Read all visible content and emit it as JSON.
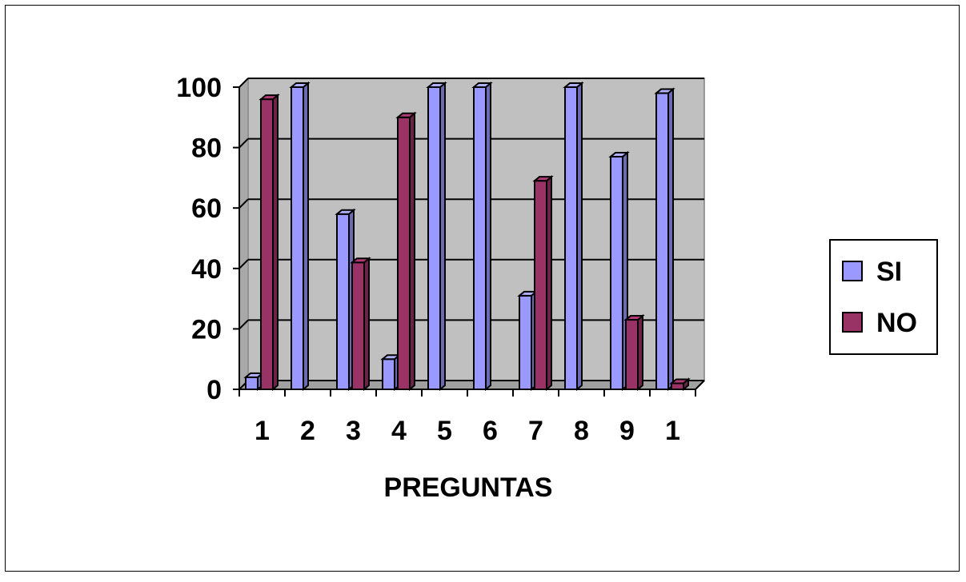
{
  "chart_data": {
    "type": "bar",
    "style": "3d-clustered-column",
    "title": "",
    "xlabel": "PREGUNTAS",
    "ylabel": "",
    "categories": [
      "1",
      "2",
      "3",
      "4",
      "5",
      "6",
      "7",
      "8",
      "9",
      "1"
    ],
    "series": [
      {
        "name": "SI",
        "values": [
          4,
          100,
          58,
          10,
          100,
          100,
          31,
          100,
          77,
          98
        ]
      },
      {
        "name": "NO",
        "values": [
          96,
          0,
          42,
          90,
          0,
          0,
          69,
          0,
          23,
          2
        ]
      }
    ],
    "ylim": [
      0,
      100
    ],
    "yticks": [
      0,
      20,
      40,
      60,
      80,
      100
    ],
    "grid": true,
    "legend_position": "right",
    "colors": {
      "SI": "#9999ff",
      "NO": "#993366",
      "plot_background": "#c0c0c0",
      "frame": "#000000"
    }
  }
}
